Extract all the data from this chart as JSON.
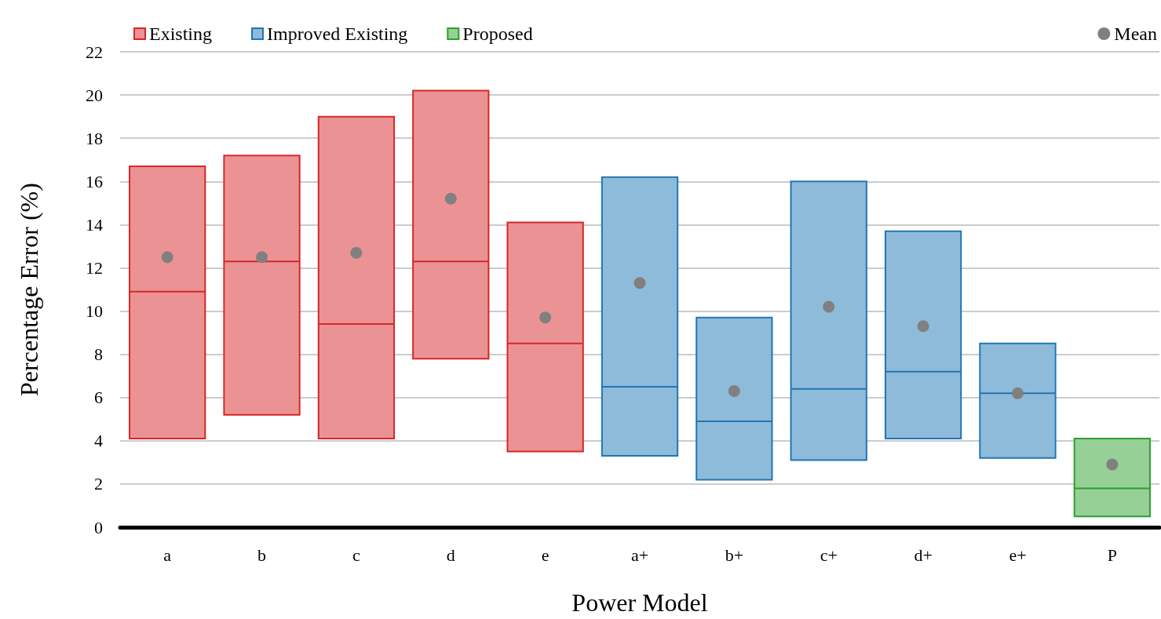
{
  "chart_data": {
    "type": "box",
    "xlabel": "Power Model",
    "ylabel": "Percentage Error (%)",
    "categories": [
      "a",
      "b",
      "c",
      "d",
      "e",
      "a+",
      "b+",
      "c+",
      "d+",
      "e+",
      "P"
    ],
    "ylim": [
      0,
      22
    ],
    "yticks": [
      0,
      2,
      4,
      6,
      8,
      10,
      12,
      14,
      16,
      18,
      20,
      22
    ],
    "grid": "y",
    "legend": "top",
    "series": [
      {
        "name": "Existing",
        "color": "#d62728",
        "boxes": [
          {
            "low": 4.1,
            "q1": 4.1,
            "median": 10.9,
            "q3": 16.7,
            "high": 16.7
          },
          {
            "low": 5.2,
            "q1": 5.2,
            "median": 12.3,
            "q3": 17.2,
            "high": 17.2
          },
          {
            "low": 4.1,
            "q1": 4.1,
            "median": 9.4,
            "q3": 19.0,
            "high": 19.0
          },
          {
            "low": 7.8,
            "q1": 7.8,
            "median": 12.3,
            "q3": 20.2,
            "high": 20.2
          },
          {
            "low": 3.5,
            "q1": 3.5,
            "median": 8.5,
            "q3": 14.1,
            "high": 14.1
          },
          null,
          null,
          null,
          null,
          null,
          null
        ]
      },
      {
        "name": "Improved Existing",
        "color": "#1f77b4",
        "boxes": [
          null,
          null,
          null,
          null,
          null,
          {
            "low": 3.3,
            "q1": 3.3,
            "median": 6.5,
            "q3": 16.2,
            "high": 16.2
          },
          {
            "low": 2.2,
            "q1": 2.2,
            "median": 4.9,
            "q3": 9.7,
            "high": 9.7
          },
          {
            "low": 3.1,
            "q1": 3.1,
            "median": 6.4,
            "q3": 16.0,
            "high": 16.0
          },
          {
            "low": 4.1,
            "q1": 4.1,
            "median": 7.2,
            "q3": 13.7,
            "high": 13.7
          },
          {
            "low": 3.2,
            "q1": 3.2,
            "median": 6.2,
            "q3": 8.5,
            "high": 8.5
          },
          null
        ]
      },
      {
        "name": "Proposed",
        "color": "#2ca02c",
        "boxes": [
          null,
          null,
          null,
          null,
          null,
          null,
          null,
          null,
          null,
          null,
          {
            "low": 0.5,
            "q1": 0.5,
            "median": 1.8,
            "q3": 4.1,
            "high": 4.1
          }
        ]
      },
      {
        "name": "Mean",
        "type": "scatter",
        "color": "#808080",
        "marker": "circle",
        "x": [
          "a",
          "b",
          "c",
          "d",
          "e",
          "a+",
          "b+",
          "c+",
          "d+",
          "e+",
          "P"
        ],
        "values": [
          12.5,
          12.5,
          12.7,
          15.2,
          9.7,
          11.3,
          6.3,
          10.2,
          9.3,
          6.2,
          2.9
        ]
      }
    ]
  }
}
